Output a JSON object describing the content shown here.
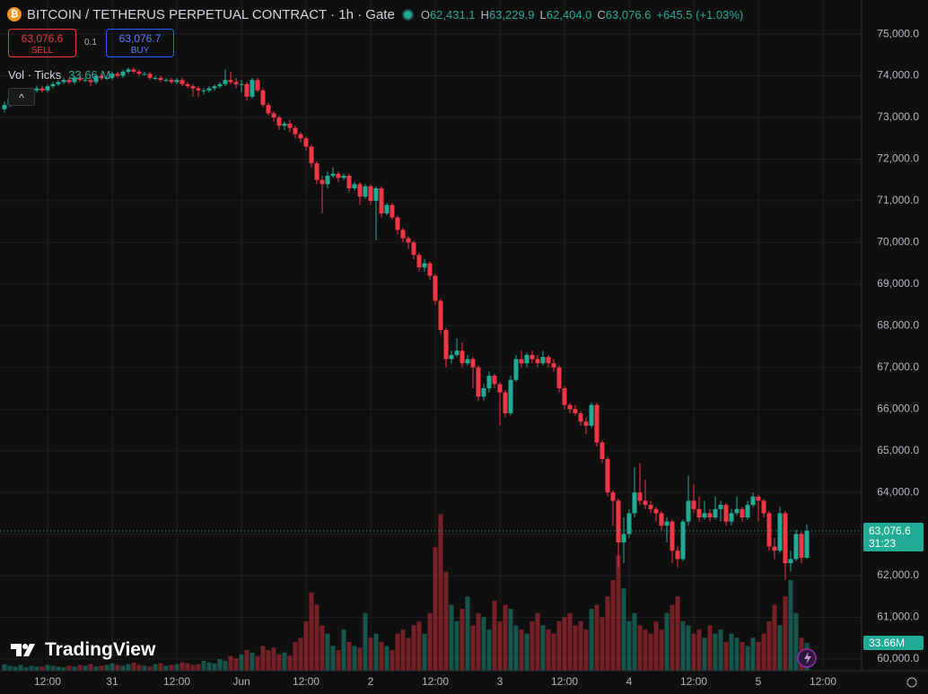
{
  "chart_data": {
    "type": "candlestick",
    "title": "BITCOIN / TETHERUS PERPETUAL CONTRACT · 1h · Gate",
    "categories": [
      null,
      null,
      null,
      null,
      null,
      null,
      null,
      null,
      "12:00",
      null,
      null,
      null,
      null,
      null,
      null,
      null,
      null,
      null,
      null,
      null,
      "31",
      null,
      null,
      null,
      null,
      null,
      null,
      null,
      null,
      null,
      null,
      null,
      "12:00",
      null,
      null,
      null,
      null,
      null,
      null,
      null,
      null,
      null,
      null,
      null,
      "Jun",
      null,
      null,
      null,
      null,
      null,
      null,
      null,
      null,
      null,
      null,
      null,
      "12:00",
      null,
      null,
      null,
      null,
      null,
      null,
      null,
      null,
      null,
      null,
      null,
      "2",
      null,
      null,
      null,
      null,
      null,
      null,
      null,
      null,
      null,
      null,
      null,
      "12:00",
      null,
      null,
      null,
      null,
      null,
      null,
      null,
      null,
      null,
      null,
      null,
      "3",
      null,
      null,
      null,
      null,
      null,
      null,
      null,
      null,
      null,
      null,
      null,
      "12:00",
      null,
      null,
      null,
      null,
      null,
      null,
      null,
      null,
      null,
      null,
      null,
      "4",
      null,
      null,
      null,
      null,
      null,
      null,
      null,
      null,
      null,
      null,
      null,
      "12:00",
      null,
      null,
      null,
      null,
      null,
      null,
      null,
      null,
      null,
      null,
      null,
      "5",
      null,
      null,
      null,
      null,
      null,
      null,
      null,
      null,
      null,
      null,
      null,
      "12:00",
      null,
      null,
      null,
      null,
      null,
      null,
      null
    ],
    "open": [
      73200,
      73300,
      73450,
      73500,
      73550,
      73600,
      73650,
      73700,
      73650,
      73750,
      73800,
      73850,
      73900,
      73850,
      73950,
      73900,
      73900,
      73850,
      74000,
      73950,
      73950,
      74050,
      74000,
      74100,
      74150,
      74100,
      74050,
      74050,
      73950,
      73950,
      73900,
      73900,
      73850,
      73900,
      73800,
      73750,
      73700,
      73650,
      73650,
      73700,
      73750,
      73800,
      73900,
      73850,
      73800,
      73800,
      73500,
      73900,
      73650,
      73300,
      73100,
      73000,
      72800,
      72850,
      72750,
      72600,
      72500,
      72300,
      71900,
      71500,
      71400,
      71600,
      71650,
      71550,
      71600,
      71300,
      71400,
      71100,
      71350,
      71000,
      71300,
      70700,
      70900,
      70600,
      70300,
      70100,
      70000,
      69700,
      69400,
      69500,
      69200,
      68600,
      67900,
      67200,
      67300,
      67400,
      67100,
      67200,
      67000,
      66300,
      66500,
      66800,
      66600,
      66400,
      65900,
      66700,
      67200,
      67100,
      67300,
      67200,
      67100,
      67250,
      67100,
      67000,
      66500,
      66100,
      66000,
      65900,
      65700,
      65600,
      66100,
      65200,
      64800,
      64000,
      63800,
      62800,
      63000,
      63500,
      64000,
      63800,
      63700,
      63600,
      63500,
      63200,
      63300,
      62600,
      62400,
      63300,
      63800,
      63600,
      63400,
      63500,
      63400,
      63600,
      63700,
      63300,
      63500,
      63600,
      63400,
      63700,
      63900,
      63800,
      63500,
      62700,
      62600,
      63500,
      62300,
      62400,
      63000,
      62431.1,
      null,
      null,
      null,
      null,
      null,
      null,
      null,
      null,
      null,
      null
    ],
    "high": [
      73380,
      73500,
      73560,
      73600,
      73650,
      73700,
      73760,
      73760,
      73800,
      73860,
      73900,
      73960,
      73950,
      74000,
      74000,
      73960,
      73950,
      74050,
      74050,
      74000,
      74100,
      74100,
      74150,
      74200,
      74200,
      74150,
      74100,
      74100,
      74000,
      74000,
      73950,
      73950,
      73950,
      73950,
      73850,
      73800,
      73750,
      73700,
      73750,
      73800,
      73850,
      74150,
      74100,
      73950,
      73900,
      73850,
      73950,
      73950,
      73700,
      73350,
      73150,
      73050,
      72900,
      72950,
      72800,
      72650,
      72550,
      72350,
      71950,
      71600,
      71700,
      71800,
      71700,
      71650,
      71650,
      71450,
      71450,
      71400,
      71400,
      71350,
      71350,
      70950,
      70950,
      70650,
      70350,
      70150,
      70050,
      69750,
      69600,
      69550,
      69250,
      68650,
      67950,
      67400,
      67700,
      67600,
      67300,
      67250,
      67050,
      66600,
      66900,
      66850,
      66650,
      66450,
      66800,
      67300,
      67400,
      67350,
      67400,
      67300,
      67400,
      67300,
      67200,
      67050,
      66550,
      66150,
      66100,
      65950,
      65800,
      66150,
      66150,
      65250,
      64850,
      64050,
      63850,
      63400,
      63600,
      64600,
      64700,
      64300,
      63800,
      63650,
      63550,
      63400,
      63350,
      62700,
      63350,
      64400,
      64200,
      63900,
      63800,
      63600,
      63900,
      63800,
      63750,
      63600,
      63900,
      63650,
      63800,
      64000,
      63950,
      63850,
      63550,
      62900,
      63650,
      63550,
      62600,
      63100,
      63050,
      63229.9,
      null,
      null,
      null,
      null,
      null,
      null,
      null,
      null,
      null,
      null
    ],
    "low": [
      73120,
      73250,
      73400,
      73450,
      73500,
      73550,
      73600,
      73600,
      73600,
      73700,
      73750,
      73800,
      73800,
      73800,
      73850,
      73850,
      73750,
      73800,
      73900,
      73900,
      73900,
      73950,
      73950,
      74050,
      74050,
      74000,
      74000,
      73900,
      73900,
      73850,
      73850,
      73800,
      73800,
      73750,
      73700,
      73500,
      73500,
      73550,
      73600,
      73650,
      73700,
      73750,
      73800,
      73700,
      73600,
      73400,
      73450,
      73600,
      73250,
      73050,
      72900,
      72700,
      72700,
      72650,
      72500,
      72400,
      72200,
      71800,
      71400,
      70700,
      71300,
      71550,
      71450,
      71500,
      71200,
      71250,
      70900,
      71050,
      70900,
      70050,
      70600,
      70650,
      70550,
      70200,
      70000,
      69850,
      69600,
      69300,
      69300,
      69100,
      68500,
      67800,
      67000,
      67100,
      67250,
      67000,
      67050,
      66500,
      66200,
      66200,
      66400,
      66500,
      65600,
      65800,
      65850,
      66650,
      67000,
      67000,
      67100,
      67000,
      67050,
      67000,
      66900,
      66400,
      66000,
      65900,
      65850,
      65600,
      65400,
      65550,
      65100,
      64700,
      63900,
      63200,
      62200,
      62300,
      62900,
      63400,
      63700,
      63600,
      63500,
      63300,
      63100,
      62800,
      62300,
      62200,
      62350,
      63200,
      63500,
      63300,
      63350,
      63300,
      63350,
      63300,
      63200,
      63200,
      63450,
      63300,
      63350,
      63650,
      63300,
      63400,
      62600,
      62400,
      62550,
      61900,
      62100,
      62350,
      62300,
      62404.0,
      null,
      null,
      null,
      null,
      null,
      null,
      null,
      null,
      null,
      null
    ],
    "close": [
      73300,
      73450,
      73500,
      73550,
      73600,
      73650,
      73700,
      73650,
      73750,
      73800,
      73850,
      73900,
      73850,
      73950,
      73900,
      73900,
      73850,
      74000,
      73950,
      73950,
      74050,
      74000,
      74100,
      74150,
      74100,
      74050,
      74050,
      73950,
      73950,
      73900,
      73900,
      73850,
      73900,
      73800,
      73750,
      73700,
      73650,
      73650,
      73700,
      73750,
      73800,
      73900,
      73850,
      73800,
      73800,
      73500,
      73900,
      73650,
      73300,
      73100,
      73000,
      72800,
      72850,
      72750,
      72600,
      72500,
      72300,
      71900,
      71500,
      71400,
      71600,
      71650,
      71550,
      71600,
      71300,
      71400,
      71100,
      71350,
      71000,
      71300,
      70700,
      70900,
      70600,
      70300,
      70100,
      70000,
      69700,
      69400,
      69500,
      69200,
      68600,
      67900,
      67200,
      67300,
      67400,
      67100,
      67200,
      67000,
      66300,
      66500,
      66800,
      66600,
      66400,
      65900,
      66700,
      67200,
      67100,
      67300,
      67200,
      67100,
      67250,
      67100,
      67000,
      66500,
      66100,
      66000,
      65900,
      65700,
      65600,
      66100,
      65200,
      64800,
      64000,
      63800,
      62800,
      63000,
      63500,
      64000,
      63800,
      63700,
      63600,
      63500,
      63200,
      63300,
      62600,
      62400,
      63300,
      63800,
      63600,
      63400,
      63500,
      63400,
      63600,
      63700,
      63300,
      63500,
      63600,
      63400,
      63700,
      63900,
      63800,
      63500,
      62700,
      62600,
      63500,
      62300,
      62400,
      63000,
      62431.1,
      63076.6,
      null,
      null,
      null,
      null,
      null,
      null,
      null,
      null,
      null,
      null
    ],
    "up_color": "#22ab94",
    "down_color": "#f23645",
    "ylim": [
      59720,
      75820
    ],
    "yticks": [
      {
        "value": 60000,
        "label": "60,000.0"
      },
      {
        "value": 61000,
        "label": "61,000.0"
      },
      {
        "value": 62000,
        "label": "62,000.0"
      },
      {
        "value": 63000,
        "label": "63,000.0"
      },
      {
        "value": 64000,
        "label": "64,000.0"
      },
      {
        "value": 65000,
        "label": "65,000.0"
      },
      {
        "value": 66000,
        "label": "66,000.0"
      },
      {
        "value": 67000,
        "label": "67,000.0"
      },
      {
        "value": 68000,
        "label": "68,000.0"
      },
      {
        "value": 69000,
        "label": "69,000.0"
      },
      {
        "value": 70000,
        "label": "70,000.0"
      },
      {
        "value": 71000,
        "label": "71,000.0"
      },
      {
        "value": 72000,
        "label": "72,000.0"
      },
      {
        "value": 73000,
        "label": "73,000.0"
      },
      {
        "value": 74000,
        "label": "74,000.0"
      },
      {
        "value": 75000,
        "label": "75,000.0"
      }
    ],
    "grid": true,
    "volume": {
      "name": "Vol · Ticks",
      "vlim": [
        0,
        210
      ],
      "legend_label": "33.66 M",
      "axis_label": "33.66M",
      "values": [
        8,
        6,
        5,
        7,
        4,
        6,
        5,
        5,
        7,
        6,
        5,
        4,
        6,
        5,
        7,
        6,
        8,
        5,
        6,
        7,
        9,
        7,
        6,
        8,
        10,
        7,
        6,
        5,
        8,
        9,
        6,
        7,
        8,
        10,
        9,
        7,
        8,
        12,
        10,
        9,
        14,
        12,
        18,
        15,
        20,
        25,
        22,
        18,
        30,
        25,
        28,
        20,
        22,
        18,
        35,
        40,
        60,
        95,
        80,
        55,
        45,
        30,
        25,
        50,
        35,
        30,
        28,
        70,
        40,
        45,
        35,
        30,
        25,
        45,
        50,
        40,
        55,
        60,
        45,
        70,
        150,
        190,
        120,
        80,
        60,
        75,
        90,
        55,
        70,
        65,
        50,
        85,
        60,
        80,
        75,
        55,
        50,
        45,
        60,
        70,
        55,
        50,
        45,
        60,
        65,
        70,
        55,
        60,
        50,
        75,
        80,
        65,
        90,
        110,
        140,
        100,
        60,
        70,
        55,
        50,
        45,
        60,
        50,
        70,
        80,
        90,
        60,
        55,
        45,
        50,
        40,
        55,
        45,
        50,
        35,
        45,
        40,
        35,
        30,
        40,
        35,
        45,
        60,
        80,
        55,
        90,
        110,
        70,
        40,
        33.66,
        null,
        null,
        null,
        null,
        null,
        null,
        null,
        null,
        null,
        null
      ]
    },
    "legend_items": [
      {
        "letter": "O",
        "value": "62,431.1"
      },
      {
        "letter": "H",
        "value": "63,229.9"
      },
      {
        "letter": "L",
        "value": "62,404.0"
      },
      {
        "letter": "C",
        "value": "63,076.6"
      }
    ],
    "change": "+645.5 (+1.03%)"
  },
  "trade": {
    "sell_price": "63,076.6",
    "sell_label": "SELL",
    "quantity": "0.1",
    "buy_price": "63,076.7",
    "buy_label": "BUY"
  },
  "price_tag": {
    "price": "63,076.6",
    "countdown": "31:23"
  },
  "brand": "TradingView"
}
